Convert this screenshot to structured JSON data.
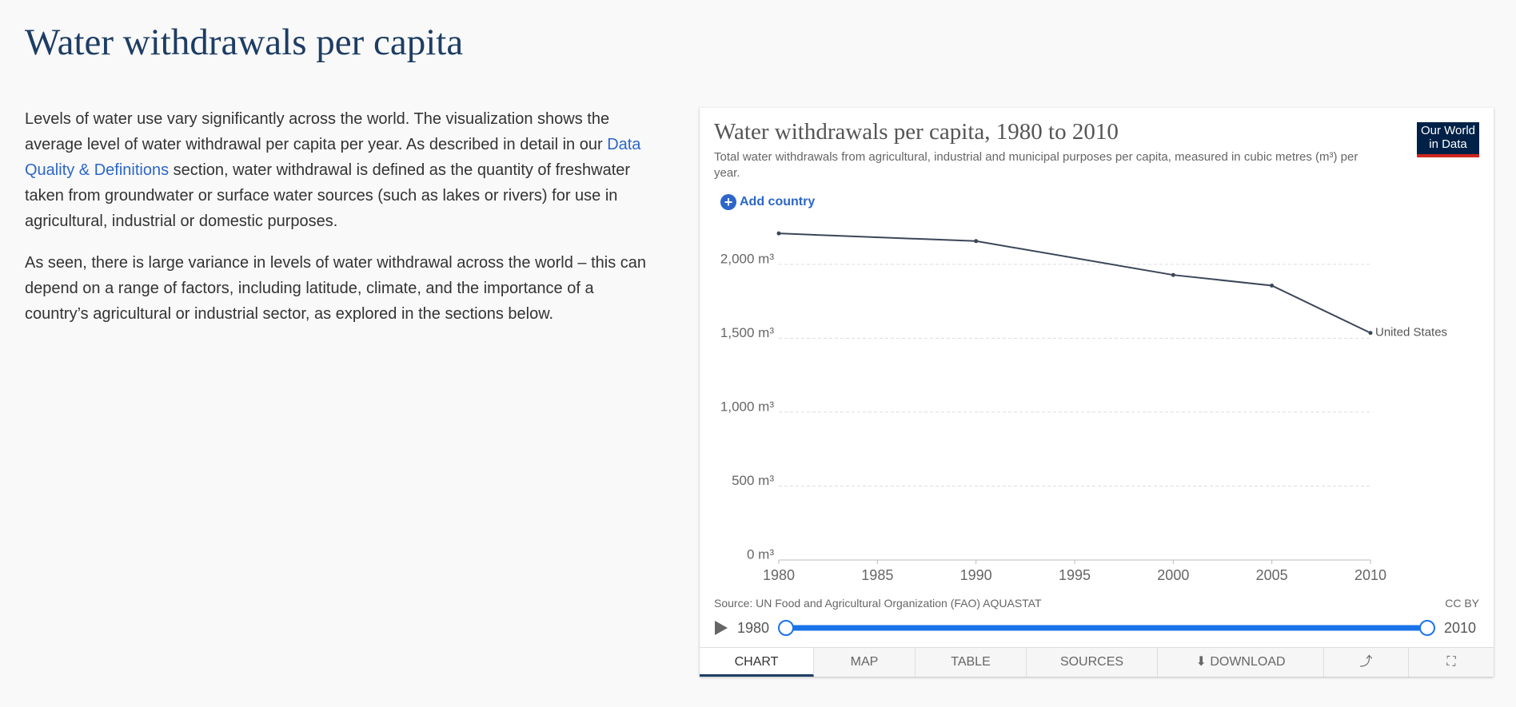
{
  "page": {
    "heading": "Water withdrawals per capita",
    "paragraph1": [
      "Levels of water use vary significantly across the world. The visualization shows the average level of water withdrawal per capita per year. As described in detail in our ",
      "Data Quality & Definitions",
      " section, water withdrawal is defined as the quantity of freshwater taken from groundwater or surface water sources (such as lakes or rivers) for use in agricultural, industrial or domestic purposes."
    ],
    "paragraph2": "As seen, there is large variance in levels of water withdrawal across the world – this can depend on a range of factors, including latitude, climate, and the importance of a country’s agricultural or industrial sector, as explored in the sections below."
  },
  "card": {
    "add_country": "Add country",
    "logo": [
      "Our World",
      "in Data"
    ],
    "source": "Source: UN Food and Agricultural Organization (FAO) AQUASTAT",
    "license": "CC BY",
    "timeline": {
      "start": "1980",
      "end": "2010"
    },
    "tabs": [
      "CHART",
      "MAP",
      "TABLE",
      "SOURCES",
      "DOWNLOAD"
    ]
  },
  "chart_data": {
    "type": "line",
    "title": "Water withdrawals per capita, 1980 to 2010",
    "subtitle": "Total water withdrawals from agricultural, industrial and municipal purposes per capita, measured in cubic metres (m³) per year.",
    "x": [
      1980,
      1990,
      2000,
      2005,
      2010
    ],
    "series": [
      {
        "name": "United States",
        "color": "#3b4658",
        "values": [
          2209,
          2157,
          1928,
          1856,
          1536
        ]
      }
    ],
    "xlim": [
      1980,
      2010
    ],
    "xticks": [
      1980,
      1985,
      1990,
      1995,
      2000,
      2005,
      2010
    ],
    "ylim": [
      0,
      2210
    ],
    "yticks": [
      {
        "value": 0,
        "label": "0 m³"
      },
      {
        "value": 500,
        "label": "500 m³"
      },
      {
        "value": 1000,
        "label": "1,000 m³"
      },
      {
        "value": 1500,
        "label": "1,500 m³"
      },
      {
        "value": 2000,
        "label": "2,000 m³"
      }
    ],
    "grid": true
  }
}
